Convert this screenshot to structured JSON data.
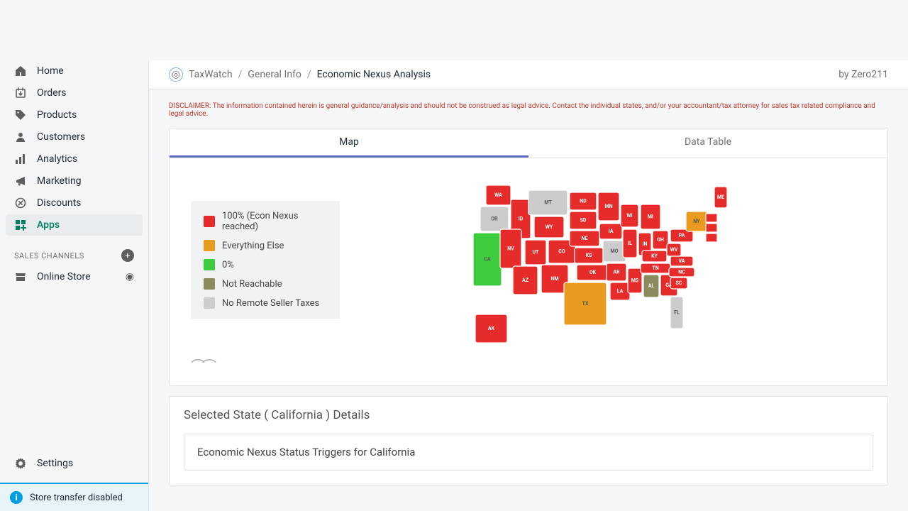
{
  "sidebar": {
    "items": [
      {
        "label": "Home",
        "icon": "home"
      },
      {
        "label": "Orders",
        "icon": "orders"
      },
      {
        "label": "Products",
        "icon": "products"
      },
      {
        "label": "Customers",
        "icon": "customers"
      },
      {
        "label": "Analytics",
        "icon": "analytics"
      },
      {
        "label": "Marketing",
        "icon": "marketing"
      },
      {
        "label": "Discounts",
        "icon": "discounts"
      },
      {
        "label": "Apps",
        "icon": "apps"
      }
    ],
    "channels_header": "SALES CHANNELS",
    "channels": [
      {
        "label": "Online Store"
      }
    ],
    "settings_label": "Settings",
    "banner": "Store transfer disabled"
  },
  "breadcrumb": {
    "part1": "TaxWatch",
    "part2": "General Info",
    "current": "Economic Nexus Analysis",
    "by": "by Zero211"
  },
  "disclaimer": "DISCLAIMER: The information contained herein is general guidance/analysis and should not be construed as legal advice. Contact the individual states, and/or your accountant/tax attorney for sales tax related compliance and legal advice.",
  "tabs": {
    "map": "Map",
    "data": "Data Table"
  },
  "legend": [
    {
      "label": "100% (Econ Nexus reached)",
      "color": "#e62b2b"
    },
    {
      "label": "Everything Else",
      "color": "#e89b1e"
    },
    {
      "label": "0%",
      "color": "#3dcc3d"
    },
    {
      "label": "Not Reachable",
      "color": "#8a8a5c"
    },
    {
      "label": "No Remote Seller Taxes",
      "color": "#cccccc"
    }
  ],
  "map": {
    "colors": {
      "red": "#e62b2b",
      "orange": "#e89b1e",
      "green": "#3dcc3d",
      "olive": "#8a8a5c",
      "grey": "#cccccc",
      "stroke": "#ffffff"
    },
    "states": [
      {
        "code": "WA",
        "status": "red"
      },
      {
        "code": "OR",
        "status": "grey"
      },
      {
        "code": "CA",
        "status": "green"
      },
      {
        "code": "ID",
        "status": "red"
      },
      {
        "code": "NV",
        "status": "red"
      },
      {
        "code": "MT",
        "status": "grey"
      },
      {
        "code": "AZ",
        "status": "red"
      },
      {
        "code": "UT",
        "status": "red"
      },
      {
        "code": "WY",
        "status": "red"
      },
      {
        "code": "CO",
        "status": "red"
      },
      {
        "code": "NM",
        "status": "red"
      },
      {
        "code": "ND",
        "status": "red"
      },
      {
        "code": "SD",
        "status": "red"
      },
      {
        "code": "NE",
        "status": "red"
      },
      {
        "code": "KS",
        "status": "red"
      },
      {
        "code": "OK",
        "status": "red"
      },
      {
        "code": "TX",
        "status": "orange"
      },
      {
        "code": "MN",
        "status": "red"
      },
      {
        "code": "IA",
        "status": "red"
      },
      {
        "code": "MO",
        "status": "grey"
      },
      {
        "code": "AR",
        "status": "red"
      },
      {
        "code": "LA",
        "status": "red"
      },
      {
        "code": "WI",
        "status": "red"
      },
      {
        "code": "IL",
        "status": "red"
      },
      {
        "code": "MS",
        "status": "red"
      },
      {
        "code": "MI",
        "status": "red"
      },
      {
        "code": "IN",
        "status": "red"
      },
      {
        "code": "OH",
        "status": "red"
      },
      {
        "code": "KY",
        "status": "red"
      },
      {
        "code": "TN",
        "status": "red"
      },
      {
        "code": "AL",
        "status": "olive"
      },
      {
        "code": "GA",
        "status": "red"
      },
      {
        "code": "FL",
        "status": "grey"
      },
      {
        "code": "WV",
        "status": "red"
      },
      {
        "code": "VA",
        "status": "red"
      },
      {
        "code": "NC",
        "status": "red"
      },
      {
        "code": "SC",
        "status": "red"
      },
      {
        "code": "PA",
        "status": "red"
      },
      {
        "code": "NY",
        "status": "orange"
      },
      {
        "code": "ME",
        "status": "red"
      },
      {
        "code": "AK",
        "status": "red"
      }
    ]
  },
  "detail": {
    "title": "Selected State ( California ) Details",
    "sub": "Economic Nexus Status Triggers for California"
  }
}
